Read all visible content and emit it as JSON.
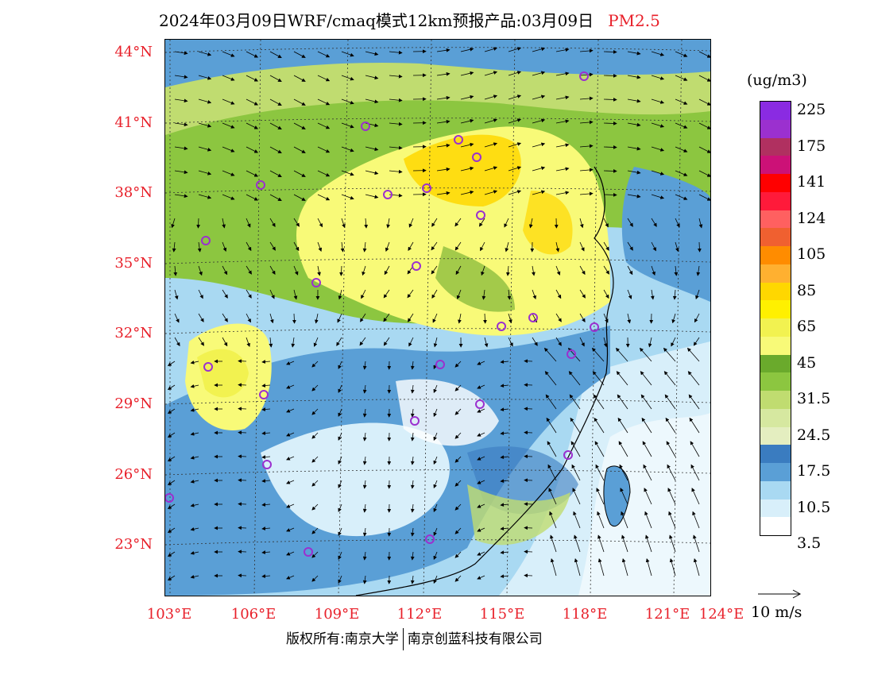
{
  "title": {
    "main": "2024年03月09日WRF/cmaq模式12km预报产品:03月09日",
    "pollutant": "PM2.5"
  },
  "map": {
    "lat_labels": [
      "44°N",
      "41°N",
      "38°N",
      "35°N",
      "32°N",
      "29°N",
      "26°N",
      "23°N"
    ],
    "lon_labels": [
      "103°E",
      "106°E",
      "109°E",
      "112°E",
      "115°E",
      "118°E",
      "121°E",
      "124°E"
    ],
    "cities_marker": "purple-circle"
  },
  "legend": {
    "unit": "(ug/m3)",
    "labels": [
      "225",
      "175",
      "141",
      "124",
      "105",
      "85",
      "65",
      "45",
      "31.5",
      "24.5",
      "17.5",
      "10.5",
      "3.5"
    ],
    "colors": [
      "#8a2be2",
      "#9b30cf",
      "#b03060",
      "#cc1177",
      "#ff0000",
      "#ff1a3a",
      "#ff6060",
      "#f06030",
      "#ff8c00",
      "#ffb030",
      "#ffd700",
      "#fff000",
      "#f2f250",
      "#f8fa78",
      "#6aaa2c",
      "#8cc640",
      "#c0dc70",
      "#d6e8a0",
      "#e4eec0",
      "#3a7cc0",
      "#5a9fd6",
      "#a9d9f2",
      "#d8effa",
      "#ffffff"
    ]
  },
  "wind_ref": {
    "label": "10 m/s"
  },
  "footer": {
    "left": "版权所有:南京大学",
    "right": "南京创蓝科技有限公司"
  }
}
